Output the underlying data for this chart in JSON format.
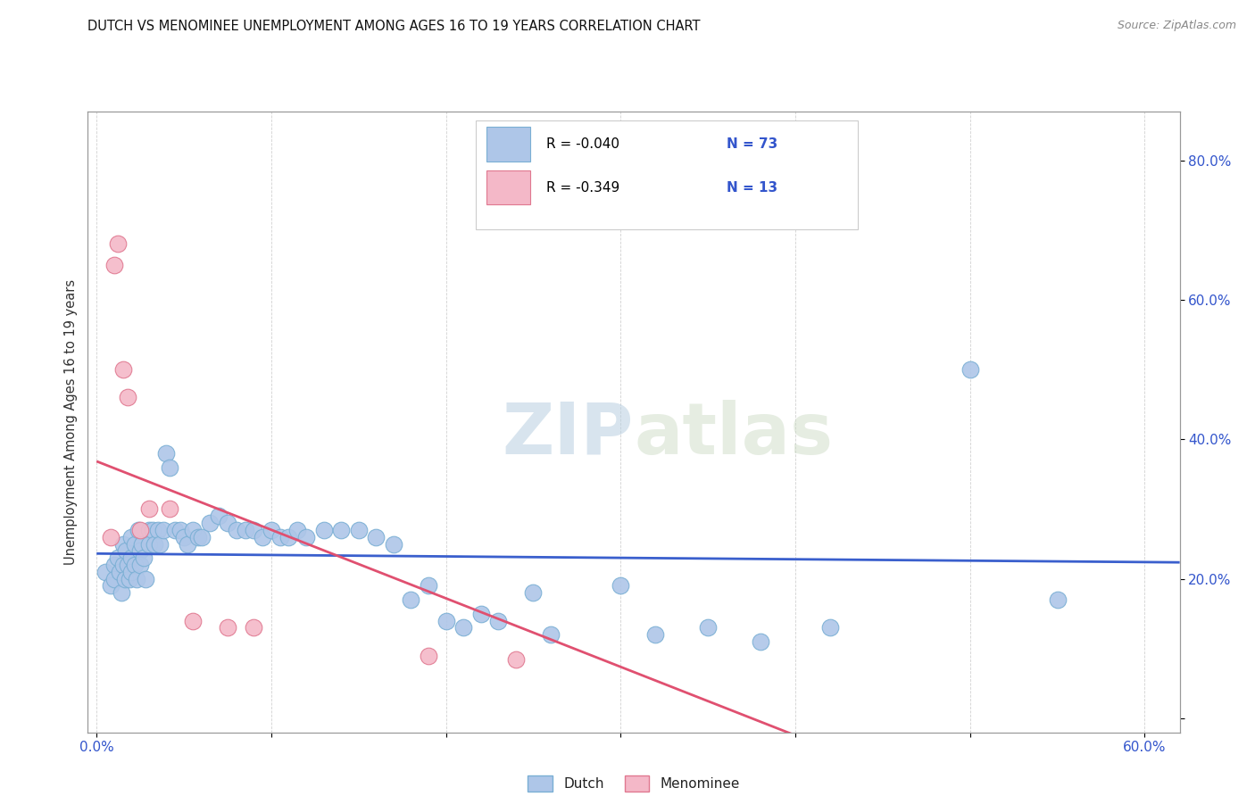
{
  "title": "DUTCH VS MENOMINEE UNEMPLOYMENT AMONG AGES 16 TO 19 YEARS CORRELATION CHART",
  "source": "Source: ZipAtlas.com",
  "ylabel": "Unemployment Among Ages 16 to 19 years",
  "xlim": [
    -0.005,
    0.62
  ],
  "ylim": [
    -0.02,
    0.87
  ],
  "xticks": [
    0.0,
    0.1,
    0.2,
    0.3,
    0.4,
    0.5,
    0.6
  ],
  "xticklabels": [
    "0.0%",
    "",
    "",
    "",
    "",
    "",
    "60.0%"
  ],
  "yticks_right": [
    0.0,
    0.2,
    0.4,
    0.6,
    0.8
  ],
  "ytick_right_labels": [
    "",
    "20.0%",
    "40.0%",
    "60.0%",
    "80.0%"
  ],
  "dutch_color": "#aec6e8",
  "dutch_edge_color": "#7aafd4",
  "menominee_color": "#f4b8c8",
  "menominee_edge_color": "#e07890",
  "dutch_R": -0.04,
  "dutch_N": 73,
  "menominee_R": -0.349,
  "menominee_N": 13,
  "dutch_line_color": "#3a5fcd",
  "menominee_line_color": "#e05070",
  "watermark": "ZIPatlas",
  "watermark_color": "#ccdcec",
  "background_color": "#ffffff",
  "grid_color": "#cccccc",
  "title_color": "#111111",
  "legend_R_color": "#cc2255",
  "legend_N_color": "#3355cc",
  "dutch_scatter_x": [
    0.005,
    0.008,
    0.01,
    0.01,
    0.012,
    0.013,
    0.014,
    0.015,
    0.015,
    0.016,
    0.017,
    0.018,
    0.019,
    0.02,
    0.02,
    0.02,
    0.022,
    0.022,
    0.023,
    0.024,
    0.025,
    0.025,
    0.026,
    0.027,
    0.028,
    0.03,
    0.03,
    0.032,
    0.033,
    0.035,
    0.036,
    0.038,
    0.04,
    0.042,
    0.045,
    0.048,
    0.05,
    0.052,
    0.055,
    0.058,
    0.06,
    0.065,
    0.07,
    0.075,
    0.08,
    0.085,
    0.09,
    0.095,
    0.1,
    0.105,
    0.11,
    0.115,
    0.12,
    0.13,
    0.14,
    0.15,
    0.16,
    0.17,
    0.18,
    0.19,
    0.2,
    0.21,
    0.22,
    0.23,
    0.25,
    0.26,
    0.3,
    0.32,
    0.35,
    0.38,
    0.42,
    0.5,
    0.55
  ],
  "dutch_scatter_y": [
    0.21,
    0.19,
    0.22,
    0.2,
    0.23,
    0.21,
    0.18,
    0.25,
    0.22,
    0.2,
    0.24,
    0.22,
    0.2,
    0.26,
    0.23,
    0.21,
    0.25,
    0.22,
    0.2,
    0.27,
    0.24,
    0.22,
    0.25,
    0.23,
    0.2,
    0.27,
    0.25,
    0.27,
    0.25,
    0.27,
    0.25,
    0.27,
    0.38,
    0.36,
    0.27,
    0.27,
    0.26,
    0.25,
    0.27,
    0.26,
    0.26,
    0.28,
    0.29,
    0.28,
    0.27,
    0.27,
    0.27,
    0.26,
    0.27,
    0.26,
    0.26,
    0.27,
    0.26,
    0.27,
    0.27,
    0.27,
    0.26,
    0.25,
    0.17,
    0.19,
    0.14,
    0.13,
    0.15,
    0.14,
    0.18,
    0.12,
    0.19,
    0.12,
    0.13,
    0.11,
    0.13,
    0.5,
    0.17
  ],
  "menominee_scatter_x": [
    0.008,
    0.01,
    0.012,
    0.015,
    0.018,
    0.025,
    0.03,
    0.042,
    0.055,
    0.075,
    0.09,
    0.19,
    0.24
  ],
  "menominee_scatter_y": [
    0.26,
    0.65,
    0.68,
    0.5,
    0.46,
    0.27,
    0.3,
    0.3,
    0.14,
    0.13,
    0.13,
    0.09,
    0.085
  ]
}
